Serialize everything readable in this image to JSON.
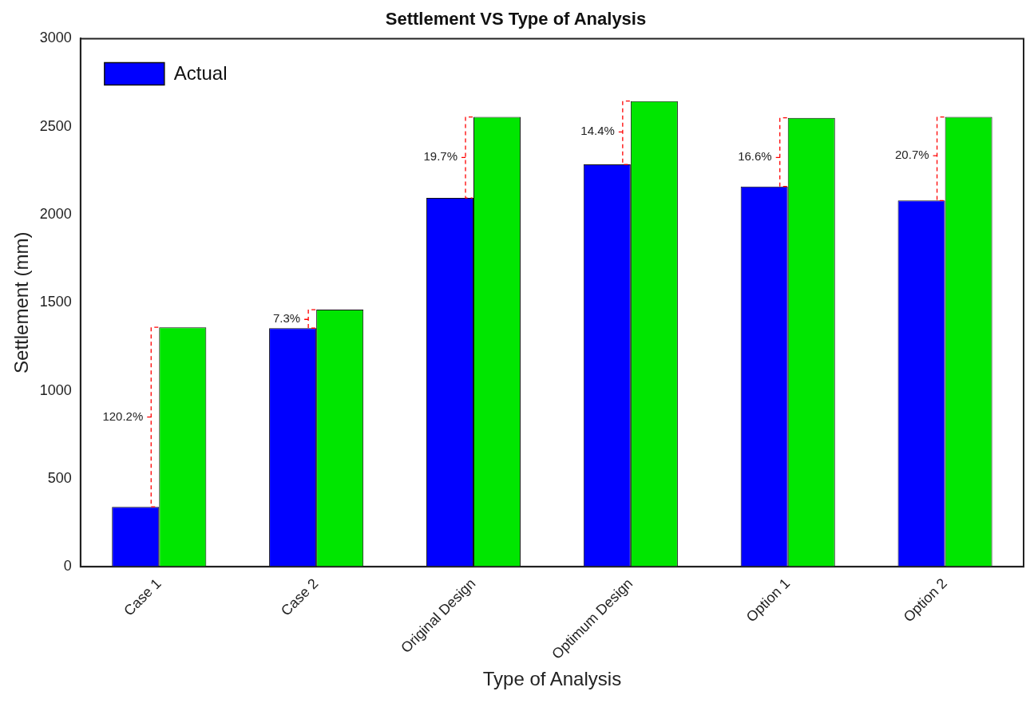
{
  "chart_data": {
    "type": "bar",
    "title": "Settlement VS Type of Analysis",
    "xlabel": "Type of Analysis",
    "ylabel": "Settlement (mm)",
    "categories": [
      "Case 1",
      "Case 2",
      "Original Design",
      "Optimum Design",
      "Option 1",
      "Option 2"
    ],
    "series": [
      {
        "name": "Actual",
        "color": "#0000ff",
        "values": [
          340,
          1355,
          2095,
          2285,
          2160,
          2080
        ]
      },
      {
        "color": "#00e600",
        "values": [
          1360,
          1460,
          2555,
          2645,
          2550,
          2555
        ]
      }
    ],
    "ylim": [
      0,
      3000
    ],
    "yticks": [
      0,
      500,
      1000,
      1500,
      2000,
      2500,
      3000
    ],
    "grid": false,
    "legend": "top left",
    "annotations": [
      {
        "text": "120.2%",
        "x": "Case 1",
        "y": 850
      },
      {
        "text": "7.3%",
        "x": "Case 2",
        "y": 1405
      },
      {
        "text": "19.7%",
        "x": "Original Design",
        "y": 2325
      },
      {
        "text": "14.4%",
        "x": "Optimum Design",
        "y": 2470
      },
      {
        "text": "16.6%",
        "x": "Option 1",
        "y": 2325
      },
      {
        "text": "20.7%",
        "x": "Option 2",
        "y": 2335
      }
    ]
  }
}
